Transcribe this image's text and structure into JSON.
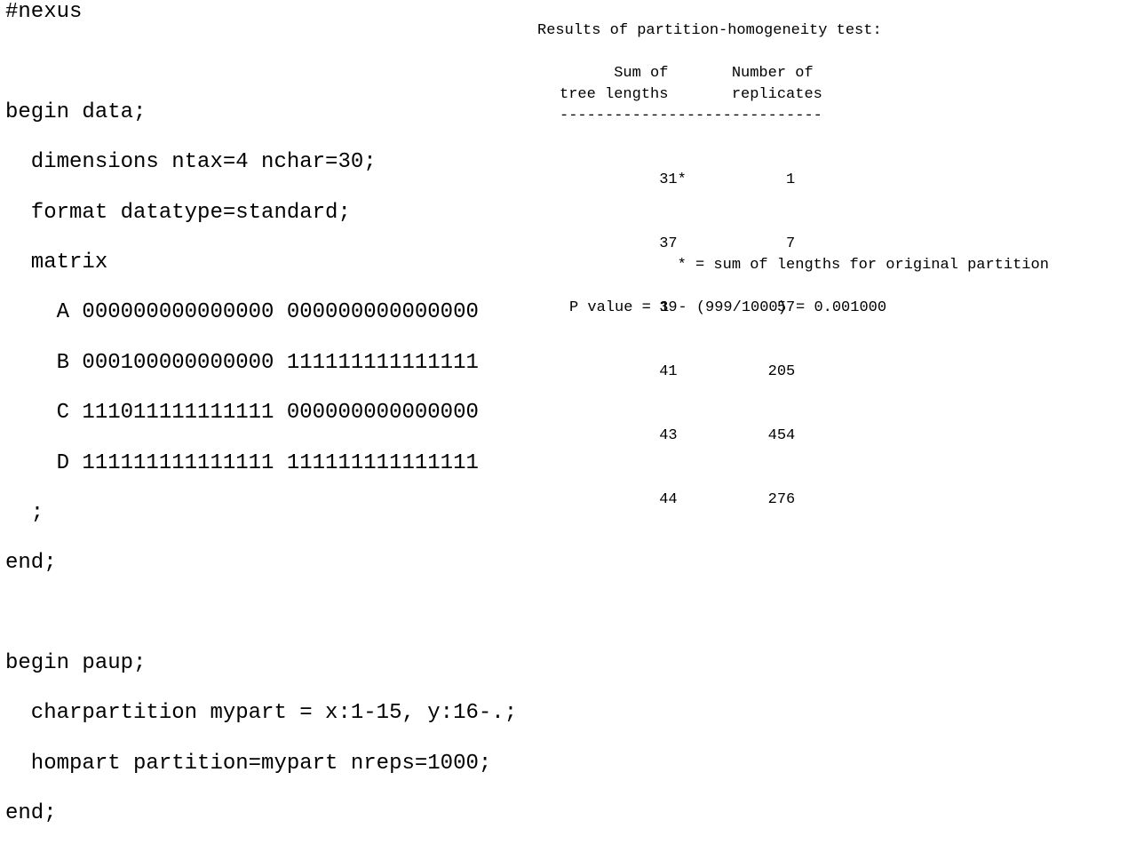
{
  "nexus_code": {
    "lines": [
      "#nexus",
      "",
      "begin data;",
      "  dimensions ntax=4 nchar=30;",
      "  format datatype=standard;",
      "  matrix",
      "    A 000000000000000 000000000000000",
      "    B 000100000000000 111111111111111",
      "    C 111011111111111 000000000000000",
      "    D 111111111111111 111111111111111",
      "  ;",
      "end;",
      "",
      "begin paup;",
      "  charpartition mypart = x:1-15, y:16-.;",
      "  hompart partition=mypart nreps=1000;",
      "end;"
    ]
  },
  "results": {
    "title": "Results of partition-homogeneity test:",
    "header_line1": "      Sum of       Number of",
    "header_line2": "tree lengths       replicates",
    "separator": "-----------------------------",
    "rows": [
      "           31*           1",
      "           37            7",
      "           39           57",
      "           41          205",
      "           43          454",
      "           44          276"
    ],
    "footnote": "             * = sum of lengths for original partition",
    "p_value": "P value = 1 - (999/1000) = 0.001000"
  }
}
